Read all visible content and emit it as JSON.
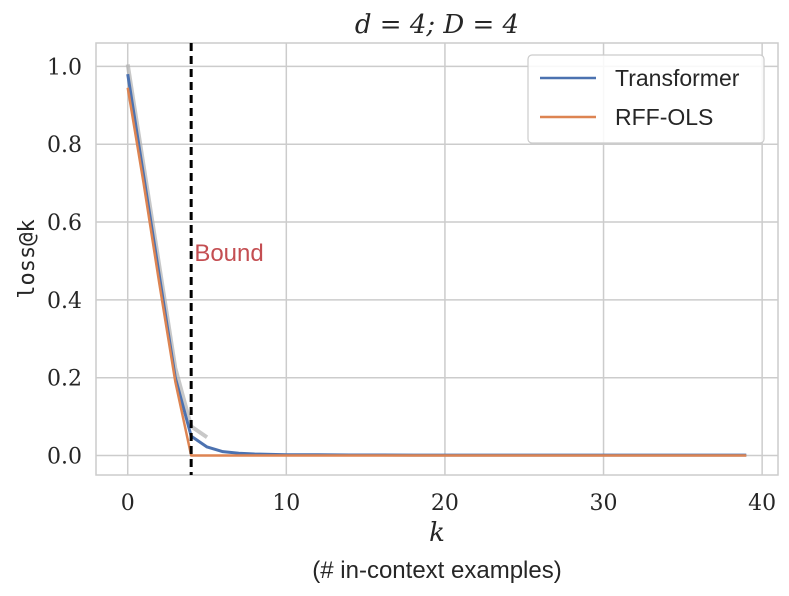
{
  "chart_data": {
    "type": "line",
    "title": "d = 4; D = 4",
    "xlabel": "k",
    "xlabel_sub": "(# in-context examples)",
    "ylabel": "loss@k",
    "xlim": [
      -2,
      41
    ],
    "ylim": [
      -0.05,
      1.06
    ],
    "xticks": [
      0,
      10,
      20,
      30,
      40
    ],
    "yticks": [
      0.0,
      0.2,
      0.4,
      0.6,
      0.8,
      1.0
    ],
    "ytick_labels": [
      "0.0",
      "0.2",
      "0.4",
      "0.6",
      "0.8",
      "1.0"
    ],
    "grid": true,
    "legend": "top-right",
    "series": [
      {
        "name": "Transformer",
        "color": "#4c72b0",
        "x": [
          0,
          1,
          2,
          3,
          4,
          5,
          6,
          7,
          8,
          9,
          10,
          12,
          14,
          16,
          18,
          20,
          22,
          24,
          26,
          28,
          30,
          32,
          34,
          36,
          38,
          39
        ],
        "y": [
          0.98,
          0.72,
          0.46,
          0.2,
          0.05,
          0.022,
          0.01,
          0.006,
          0.004,
          0.003,
          0.002,
          0.002,
          0.0015,
          0.0015,
          0.001,
          0.001,
          0.001,
          0.001,
          0.001,
          0.001,
          0.001,
          0.001,
          0.001,
          0.001,
          0.001,
          0.001
        ]
      },
      {
        "name": "RFF-OLS",
        "color": "#dd8452",
        "x": [
          0,
          1,
          2,
          3,
          4,
          5,
          10,
          20,
          30,
          39
        ],
        "y": [
          0.945,
          0.7,
          0.44,
          0.19,
          0.0,
          0.0,
          0.0,
          0.0,
          0.0,
          0.0
        ]
      }
    ],
    "vline": {
      "x": 4,
      "style": "dashed",
      "color": "#000000"
    },
    "annotation": {
      "text": "Bound",
      "x": 4.2,
      "y": 0.52,
      "color": "#c44e52"
    }
  }
}
